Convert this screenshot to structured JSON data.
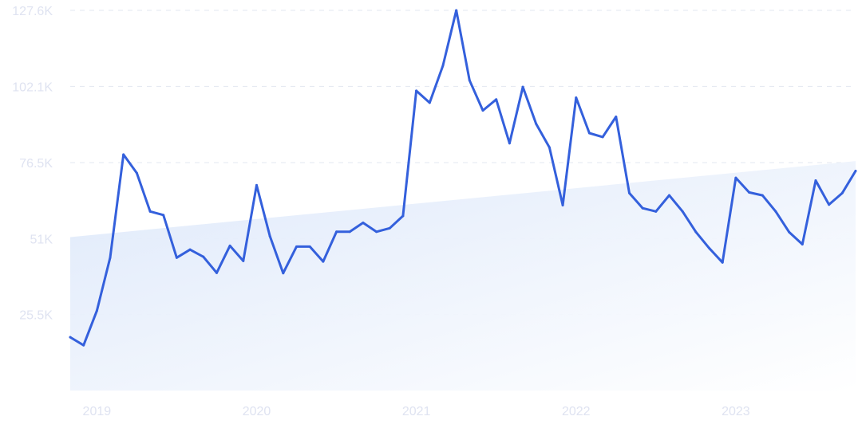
{
  "chart_data": {
    "type": "line",
    "title": "",
    "xlabel": "",
    "ylabel": "",
    "x_tick_labels": [
      "2019",
      "2020",
      "2021",
      "2022",
      "2023"
    ],
    "y_tick_labels": [
      "127.6K",
      "102.1K",
      "76.5K",
      "51K",
      "25.5K"
    ],
    "y_tick_values": [
      127600,
      102100,
      76500,
      51000,
      25500
    ],
    "ylim": [
      0,
      127600
    ],
    "xlim": [
      "2018-11",
      "2023-10"
    ],
    "grid": "horizontal-dashed",
    "legend": "none",
    "colors": {
      "line": "#3460dc",
      "trend_fill": "#e3edfb",
      "grid": "#e3e7f0",
      "tick_label": "#dfe3f1"
    },
    "trend": {
      "start": {
        "x": "2018-11",
        "y": 51500
      },
      "end": {
        "x": "2023-10",
        "y": 77000
      }
    },
    "series": [
      {
        "x": [
          "2018-11",
          "2018-12",
          "2019-01",
          "2019-02",
          "2019-03",
          "2019-04",
          "2019-05",
          "2019-06",
          "2019-07",
          "2019-08",
          "2019-09",
          "2019-10",
          "2019-11",
          "2019-12",
          "2020-01",
          "2020-02",
          "2020-03",
          "2020-04",
          "2020-05",
          "2020-06",
          "2020-07",
          "2020-08",
          "2020-09",
          "2020-10",
          "2020-11",
          "2020-12",
          "2021-01",
          "2021-02",
          "2021-03",
          "2021-04",
          "2021-05",
          "2021-06",
          "2021-07",
          "2021-08",
          "2021-09",
          "2021-10",
          "2021-11",
          "2021-12",
          "2022-01",
          "2022-02",
          "2022-03",
          "2022-04",
          "2022-05",
          "2022-06",
          "2022-07",
          "2022-08",
          "2022-09",
          "2022-10",
          "2022-11",
          "2022-12",
          "2023-01",
          "2023-02",
          "2023-03",
          "2023-04",
          "2023-05",
          "2023-06",
          "2023-07",
          "2023-08",
          "2023-09",
          "2023-10"
        ],
        "values": [
          17900,
          15200,
          26800,
          44600,
          79200,
          73000,
          60100,
          58900,
          44600,
          47300,
          44900,
          39500,
          48600,
          43500,
          68900,
          51800,
          39400,
          48300,
          48300,
          43300,
          53300,
          53300,
          56300,
          53300,
          54500,
          58600,
          100600,
          96600,
          109100,
          127600,
          104100,
          94000,
          97700,
          83000,
          101900,
          89500,
          81600,
          62200,
          98300,
          86400,
          85100,
          91900,
          66300,
          61200,
          60100,
          65500,
          60100,
          53200,
          47800,
          43000,
          71400,
          66500,
          65500,
          60100,
          53200,
          49100,
          70500,
          62400,
          66300,
          73700
        ]
      }
    ]
  }
}
